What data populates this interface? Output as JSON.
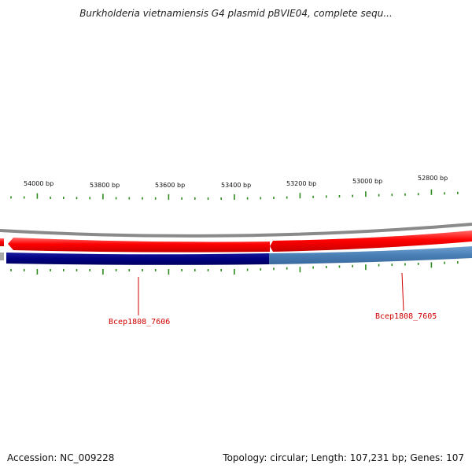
{
  "title": "Burkholderia vietnamiensis G4 plasmid pBVIE04, complete sequ...",
  "footer": {
    "accession": "Accession: NC_009228",
    "summary": "Topology: circular; Length: 107,231 bp; Genes: 107"
  },
  "scale": {
    "labels": [
      "54000 bp",
      "53800 bp",
      "53600 bp",
      "53400 bp",
      "53200 bp",
      "53000 bp",
      "52800 bp"
    ],
    "tick_color": "#2e8b1e"
  },
  "genes": [
    {
      "name": "Bcep1808_7606",
      "color": "#d00000"
    },
    {
      "name": "Bcep1808_7605",
      "color": "#d00000"
    }
  ],
  "colors": {
    "forward_strand": "#ff0000",
    "reverse_strand_dark": "#000080",
    "reverse_strand_light": "#4a7fb5",
    "backbone": "#8a8a8a"
  }
}
